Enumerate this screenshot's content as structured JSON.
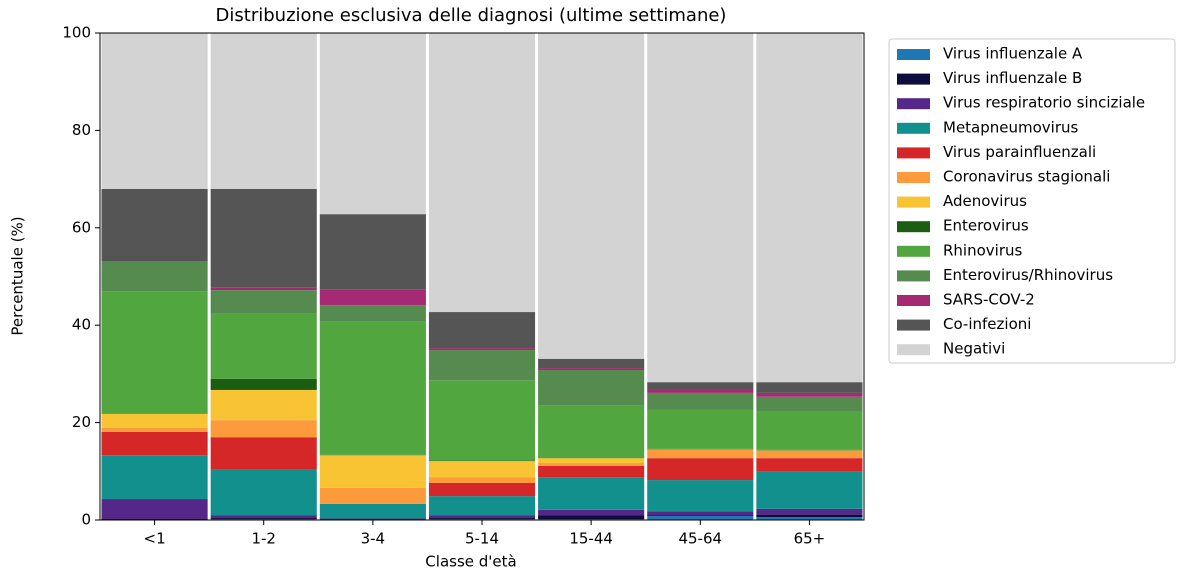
{
  "chart_data": {
    "type": "stacked_bar",
    "title": "Distribuzione esclusiva delle diagnosi (ultime settimane)",
    "x_label": "Classe d'età",
    "y_label": "Percentuale (%)",
    "categories": [
      "<1",
      "1-2",
      "3-4",
      "5-14",
      "15-44",
      "45-64",
      "65+"
    ],
    "ylim": [
      0,
      100
    ],
    "yticks": [
      0,
      20,
      40,
      60,
      80,
      100
    ],
    "legend": "outside-right",
    "series": [
      {
        "name": "Virus influenzale A",
        "color": "#1f77b4",
        "values": [
          0.1,
          0.2,
          0.1,
          0.2,
          0.2,
          0.8,
          0.6
        ]
      },
      {
        "name": "Virus influenzale B",
        "color": "#0d0d3d",
        "values": [
          0.1,
          0.2,
          0,
          0.2,
          0.8,
          0.2,
          0.5
        ]
      },
      {
        "name": "Virus respiratorio sinciziale",
        "color": "#542788",
        "values": [
          4.1,
          0.6,
          0.2,
          0.6,
          1.1,
          0.8,
          1.2
        ]
      },
      {
        "name": "Metapneumovirus",
        "color": "#12908e",
        "values": [
          9.0,
          9.3,
          3.0,
          3.9,
          6.7,
          6.4,
          7.6
        ]
      },
      {
        "name": "Virus parainfluenzali",
        "color": "#d62728",
        "values": [
          4.8,
          6.7,
          0,
          2.7,
          2.3,
          4.5,
          2.8
        ]
      },
      {
        "name": "Coronavirus stagionali",
        "color": "#fd9a3c",
        "values": [
          0.8,
          3.5,
          3.3,
          1.2,
          0.6,
          1.7,
          1.5
        ]
      },
      {
        "name": "Adenovirus",
        "color": "#f8c433",
        "values": [
          2.9,
          6.2,
          6.7,
          3.3,
          1.0,
          0.1,
          0.1
        ]
      },
      {
        "name": "Enterovirus",
        "color": "#1a5e12",
        "values": [
          0.1,
          2.3,
          0.1,
          0.1,
          0.1,
          0.1,
          0.1
        ]
      },
      {
        "name": "Rhinovirus",
        "color": "#52a63f",
        "values": [
          25.1,
          13.5,
          27.3,
          16.5,
          10.8,
          8.0,
          7.8
        ]
      },
      {
        "name": "Enterovirus/Rhinovirus",
        "color": "#558b4f",
        "values": [
          6.0,
          4.7,
          3.4,
          6.2,
          7.2,
          3.5,
          3.1
        ]
      },
      {
        "name": "SARS-COV-2",
        "color": "#a52a74",
        "values": [
          0.1,
          0.6,
          3.3,
          0.4,
          0.4,
          0.6,
          0.8
        ]
      },
      {
        "name": "Co-infezioni",
        "color": "#555555",
        "values": [
          14.9,
          20.2,
          15.4,
          7.4,
          1.9,
          1.6,
          2.2
        ]
      },
      {
        "name": "Negativi",
        "color": "#d3d3d3",
        "values": [
          32.0,
          32.0,
          37.2,
          57.3,
          66.9,
          71.7,
          71.7
        ]
      }
    ]
  }
}
